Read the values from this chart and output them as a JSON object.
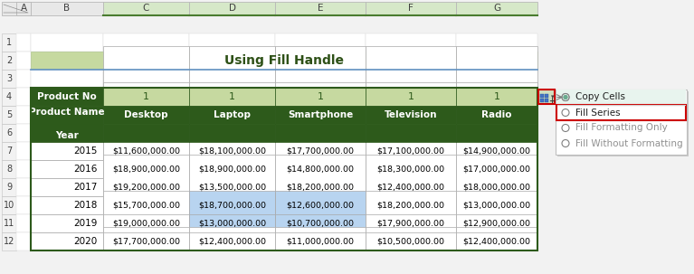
{
  "title": "Using Fill Handle",
  "title_bg": "#c6d9a0",
  "title_color": "#2d5016",
  "col_headers": [
    "A",
    "B",
    "C",
    "D",
    "E",
    "F",
    "G"
  ],
  "row_numbers": [
    "1",
    "2",
    "3",
    "4",
    "5",
    "6",
    "7",
    "8",
    "9",
    "10",
    "11",
    "12"
  ],
  "header_row4_b": "Product No",
  "header_row4_vals": [
    "1",
    "1",
    "1",
    "1",
    "1"
  ],
  "prod_names": [
    "Desktop",
    "Laptop",
    "Smartphone",
    "Television",
    "Radio"
  ],
  "data_rows": [
    [
      "2015",
      "$11,600,000.00",
      "$18,100,000.00",
      "$17,700,000.00",
      "$17,100,000.00",
      "$14,900,000.00"
    ],
    [
      "2016",
      "$18,900,000.00",
      "$18,900,000.00",
      "$14,800,000.00",
      "$18,300,000.00",
      "$17,000,000.00"
    ],
    [
      "2017",
      "$19,200,000.00",
      "$13,500,000.00",
      "$18,200,000.00",
      "$12,400,000.00",
      "$18,000,000.00"
    ],
    [
      "2018",
      "$15,700,000.00",
      "$18,700,000.00",
      "$12,600,000.00",
      "$18,200,000.00",
      "$13,000,000.00"
    ],
    [
      "2019",
      "$19,000,000.00",
      "$13,000,000.00",
      "$10,700,000.00",
      "$17,900,000.00",
      "$12,900,000.00"
    ],
    [
      "2020",
      "$17,700,000.00",
      "$12,400,000.00",
      "$11,000,000.00",
      "$10,500,000.00",
      "$12,400,000.00"
    ]
  ],
  "dark_green": "#2d5a1b",
  "light_green_header": "#c6d9a0",
  "highlight_blue": "#b8d4f0",
  "copy_cells_dot": "#6aab8e",
  "fill_series_border": "#cc0000",
  "icon_border": "#cc0000",
  "col_selected_bg": "#d6e8c8",
  "col_selected_border": "#4a7c2f",
  "menu_items": [
    "Copy Cells",
    "Fill Series",
    "Fill Formatting Only",
    "Fill Without Formatting"
  ],
  "menu_selected_idx": 0,
  "menu_red_border_idx": 1
}
